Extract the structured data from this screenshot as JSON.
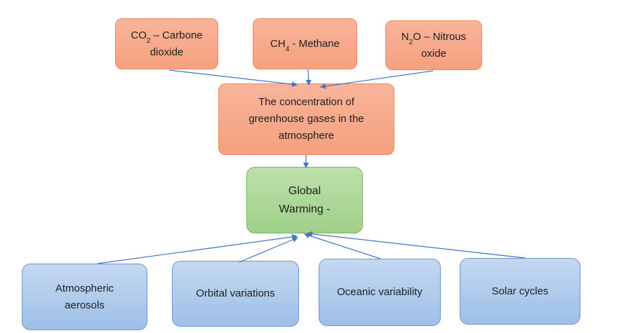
{
  "nodes": {
    "co2": {
      "prefix": "CO",
      "sub": "2",
      "suffix": " – Carbone",
      "line2": "dioxide"
    },
    "ch4": {
      "prefix": "CH",
      "sub": "4",
      "suffix": " - Methane"
    },
    "n2o": {
      "prefix": "N",
      "sub": "2",
      "suffix": "O – Nitrous",
      "line2": "oxide"
    },
    "concentration": {
      "label": "The concentration of\ngreenhouse gases in the\natmosphere"
    },
    "global_warming": {
      "label": "Global\nWarming -"
    },
    "aerosols": {
      "label": "Atmospheric\naerosols"
    },
    "orbital": {
      "label": "Orbital variations"
    },
    "oceanic": {
      "label": "Oceanic variability"
    },
    "solar": {
      "label": "Solar cycles"
    }
  },
  "colors": {
    "arrow": "#4472c4",
    "orange_fill": "#f6a07f",
    "green_fill": "#a9d18e",
    "blue_fill": "#a9c4eb"
  }
}
